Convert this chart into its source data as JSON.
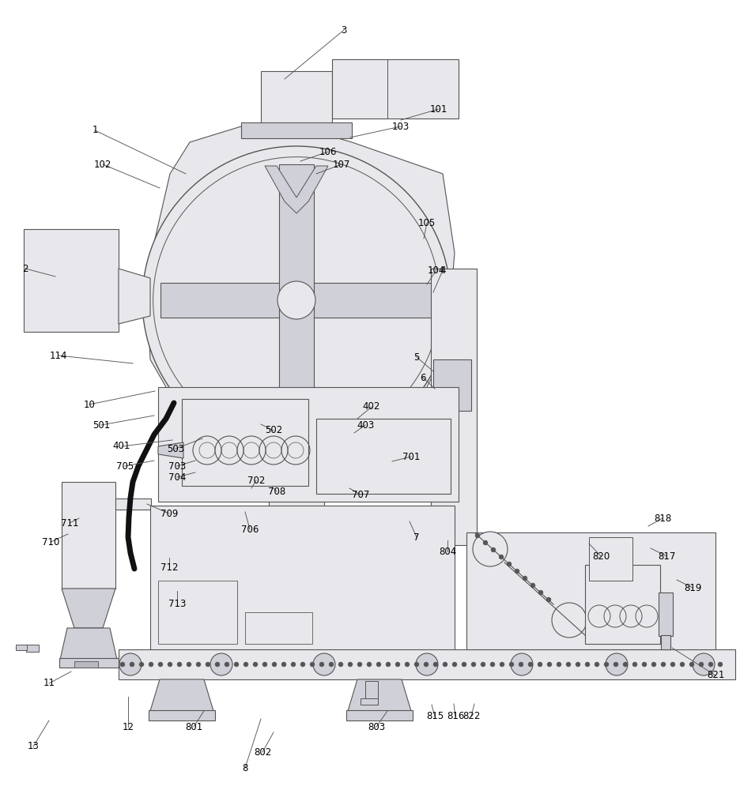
{
  "bg": "#ffffff",
  "lc": "#555555",
  "fill_light": "#e8e8ec",
  "fill_med": "#d0d0d8",
  "fill_dark": "#b8b8c0",
  "lw": 0.8,
  "label_fs": 8.5
}
